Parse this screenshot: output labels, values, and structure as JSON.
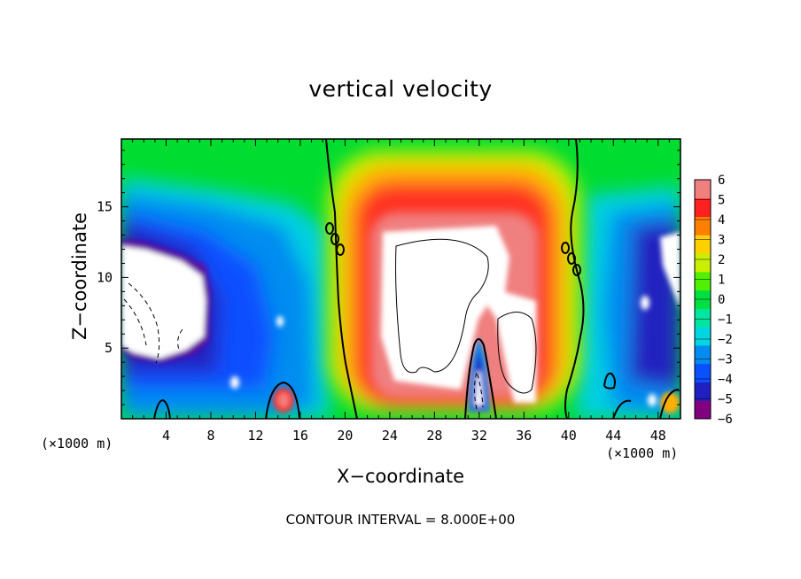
{
  "chart_data": {
    "type": "heatmap",
    "title": "vertical velocity",
    "xlabel": "X−coordinate",
    "ylabel": "Z−coordinate",
    "x_unit_label": "(×1000 m)",
    "x_ticks": [
      "4",
      "8",
      "12",
      "16",
      "20",
      "24",
      "28",
      "32",
      "36",
      "40",
      "44",
      "48"
    ],
    "y_ticks": [
      "5",
      "10",
      "15"
    ],
    "xlim": [
      0,
      50
    ],
    "ylim": [
      0,
      19.8
    ],
    "colorbar": {
      "ticks": [
        "6",
        "5",
        "4",
        "3",
        "2",
        "1",
        "0",
        "−1",
        "−2",
        "−3",
        "−4",
        "−5",
        "−6"
      ],
      "range": [
        -6,
        6
      ],
      "colors": [
        "#800080",
        "#2020c0",
        "#0a50ff",
        "#008cf0",
        "#00d6e0",
        "#00e6a0",
        "#00e040",
        "#50f000",
        "#c8f000",
        "#ffd000",
        "#ff8000",
        "#ff2020",
        "#f08080"
      ]
    },
    "footer_text": "CONTOUR INTERVAL = 8.000E+00",
    "contour_interval": 8.0,
    "features": [
      {
        "label": "updraft core (>6, saturated white)",
        "x_range": [
          24,
          37
        ],
        "z_range": [
          1.5,
          13
        ]
      },
      {
        "label": "downdraft core (<-6, saturated white)",
        "x_range": [
          0,
          8
        ],
        "z_range": [
          4,
          12.5
        ]
      },
      {
        "label": "narrow downdraft",
        "x_range": [
          31,
          33
        ],
        "z_range": [
          0,
          4.5
        ]
      },
      {
        "label": "downdraft edge (right)",
        "x_range": [
          46,
          50
        ],
        "z_range": [
          3,
          13
        ]
      }
    ]
  }
}
